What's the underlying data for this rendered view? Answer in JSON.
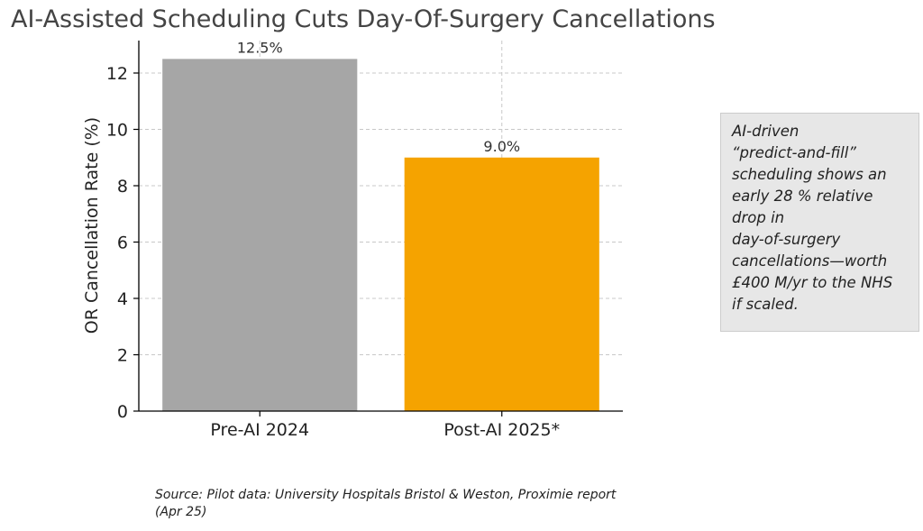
{
  "chart_data": {
    "type": "bar",
    "title": "AI-Assisted Scheduling Cuts Day-Of-Surgery Cancellations",
    "xlabel": "",
    "ylabel": "OR Cancellation Rate (%)",
    "categories": [
      "Pre-AI 2024",
      "Post-AI 2025*"
    ],
    "values": [
      12.5,
      9.0
    ],
    "value_labels": [
      "12.5%",
      "9.0%"
    ],
    "colors": [
      "#a6a6a6",
      "#f5a300"
    ],
    "ylim": [
      0,
      13.2
    ],
    "yticks": [
      0,
      2,
      4,
      6,
      8,
      10,
      12
    ],
    "grid": true,
    "legend": "none"
  },
  "annotation": {
    "lines": [
      "AI-driven",
      "“predict-and-fill”",
      "scheduling shows an",
      "early 28 % relative",
      "drop in",
      "day-of-surgery",
      "cancellations—worth",
      "£400 M/yr to the NHS",
      "if scaled."
    ]
  },
  "source": "Source: Pilot data: University Hospitals Bristol & Weston, Proximie report (Apr 25)"
}
